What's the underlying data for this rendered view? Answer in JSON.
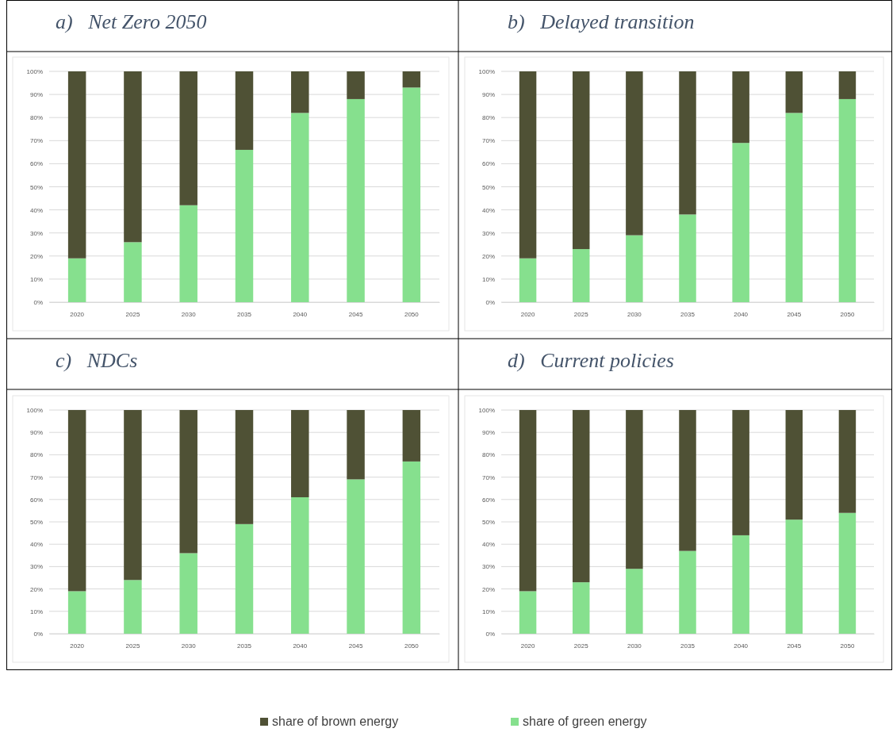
{
  "chart_data": [
    {
      "type": "bar",
      "title": "a)   Net Zero 2050",
      "categories": [
        "2020",
        "2025",
        "2030",
        "2035",
        "2040",
        "2045",
        "2050"
      ],
      "stacked": true,
      "ylim": [
        0,
        100
      ],
      "yticks": [
        {
          "value": 0,
          "label": "0%"
        },
        {
          "value": 10,
          "label": "10%"
        },
        {
          "value": 20,
          "label": "20%"
        },
        {
          "value": 30,
          "label": "30%"
        },
        {
          "value": 40,
          "label": "40%"
        },
        {
          "value": 50,
          "label": "50%"
        },
        {
          "value": 60,
          "label": "60%"
        },
        {
          "value": 70,
          "label": "70%"
        },
        {
          "value": 80,
          "label": "80%"
        },
        {
          "value": 90,
          "label": "90%"
        },
        {
          "value": 100,
          "label": "100%"
        }
      ],
      "grid": "y",
      "legend": "bottom",
      "series": [
        {
          "name": "share of green energy",
          "color": "#86e08e",
          "values": [
            19,
            26,
            42,
            66,
            82,
            88,
            93
          ]
        },
        {
          "name": "share of brown energy",
          "color": "#4f5135",
          "values": [
            81,
            74,
            58,
            34,
            18,
            12,
            7
          ]
        }
      ]
    },
    {
      "type": "bar",
      "title": "b)   Delayed transition",
      "categories": [
        "2020",
        "2025",
        "2030",
        "2035",
        "2040",
        "2045",
        "2050"
      ],
      "stacked": true,
      "ylim": [
        0,
        100
      ],
      "yticks": [
        {
          "value": 0,
          "label": "0%"
        },
        {
          "value": 10,
          "label": "10%"
        },
        {
          "value": 20,
          "label": "20%"
        },
        {
          "value": 30,
          "label": "30%"
        },
        {
          "value": 40,
          "label": "40%"
        },
        {
          "value": 50,
          "label": "50%"
        },
        {
          "value": 60,
          "label": "60%"
        },
        {
          "value": 70,
          "label": "70%"
        },
        {
          "value": 80,
          "label": "80%"
        },
        {
          "value": 90,
          "label": "90%"
        },
        {
          "value": 100,
          "label": "100%"
        }
      ],
      "grid": "y",
      "series": [
        {
          "color": "#86e08e",
          "values": [
            19,
            23,
            29,
            38,
            69,
            82,
            88
          ]
        },
        {
          "color": "#4f5135",
          "values": [
            81,
            77,
            71,
            62,
            31,
            18,
            12
          ]
        }
      ]
    },
    {
      "type": "bar",
      "title": "c)   NDCs",
      "categories": [
        "2020",
        "2025",
        "2030",
        "2035",
        "2040",
        "2045",
        "2050"
      ],
      "stacked": true,
      "ylim": [
        0,
        100
      ],
      "yticks": [
        {
          "value": 0,
          "label": "0%"
        },
        {
          "value": 10,
          "label": "10%"
        },
        {
          "value": 20,
          "label": "20%"
        },
        {
          "value": 30,
          "label": "30%"
        },
        {
          "value": 40,
          "label": "40%"
        },
        {
          "value": 50,
          "label": "50%"
        },
        {
          "value": 60,
          "label": "60%"
        },
        {
          "value": 70,
          "label": "70%"
        },
        {
          "value": 80,
          "label": "80%"
        },
        {
          "value": 90,
          "label": "90%"
        },
        {
          "value": 100,
          "label": "100%"
        }
      ],
      "grid": "y",
      "series": [
        {
          "color": "#86e08e",
          "values": [
            19,
            24,
            36,
            49,
            61,
            69,
            77
          ]
        },
        {
          "color": "#4f5135",
          "values": [
            81,
            76,
            64,
            51,
            39,
            31,
            23
          ]
        }
      ]
    },
    {
      "type": "bar",
      "title": "d)   Current policies",
      "categories": [
        "2020",
        "2025",
        "2030",
        "2035",
        "2040",
        "2045",
        "2050"
      ],
      "stacked": true,
      "ylim": [
        0,
        100
      ],
      "yticks": [
        {
          "value": 0,
          "label": "0%"
        },
        {
          "value": 10,
          "label": "10%"
        },
        {
          "value": 20,
          "label": "20%"
        },
        {
          "value": 30,
          "label": "30%"
        },
        {
          "value": 40,
          "label": "40%"
        },
        {
          "value": 50,
          "label": "50%"
        },
        {
          "value": 60,
          "label": "60%"
        },
        {
          "value": 70,
          "label": "70%"
        },
        {
          "value": 80,
          "label": "80%"
        },
        {
          "value": 90,
          "label": "90%"
        },
        {
          "value": 100,
          "label": "100%"
        }
      ],
      "grid": "y",
      "series": [
        {
          "color": "#86e08e",
          "values": [
            19,
            23,
            29,
            37,
            44,
            51,
            54
          ]
        },
        {
          "color": "#4f5135",
          "values": [
            81,
            77,
            71,
            63,
            56,
            49,
            46
          ]
        }
      ]
    }
  ]
}
